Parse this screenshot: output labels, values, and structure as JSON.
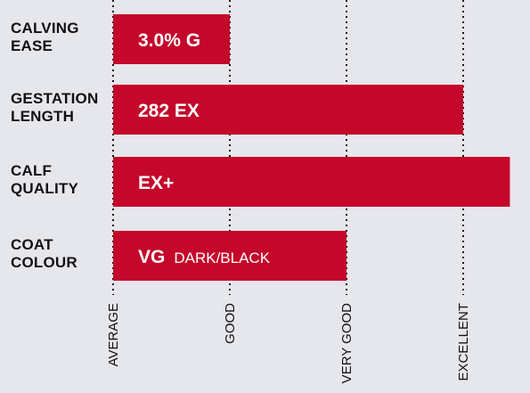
{
  "chart_data": {
    "type": "bar",
    "orientation": "horizontal",
    "categories": [
      [
        "CALVING",
        "EASE"
      ],
      [
        "GESTATION",
        "LENGTH"
      ],
      [
        "CALF",
        "QUALITY"
      ],
      [
        "COAT",
        "COLOUR"
      ]
    ],
    "values": [
      1,
      3,
      3.4,
      2
    ],
    "bar_labels": [
      {
        "value": "3.0% G",
        "note": ""
      },
      {
        "value": "282 EX",
        "note": ""
      },
      {
        "value": "EX+",
        "note": ""
      },
      {
        "value": "VG",
        "note": "DARK/BLACK"
      }
    ],
    "x_tick_labels": [
      "AVERAGE",
      "GOOD",
      "VERY GOOD",
      "EXCELLENT"
    ],
    "xlim": [
      0,
      3.4
    ],
    "grid": "vertical dotted",
    "colors": {
      "bar": "#c4072a",
      "background": "#e6e6ed",
      "text": "#111111",
      "bar_text": "#ffffff",
      "grid": "#111111"
    }
  }
}
